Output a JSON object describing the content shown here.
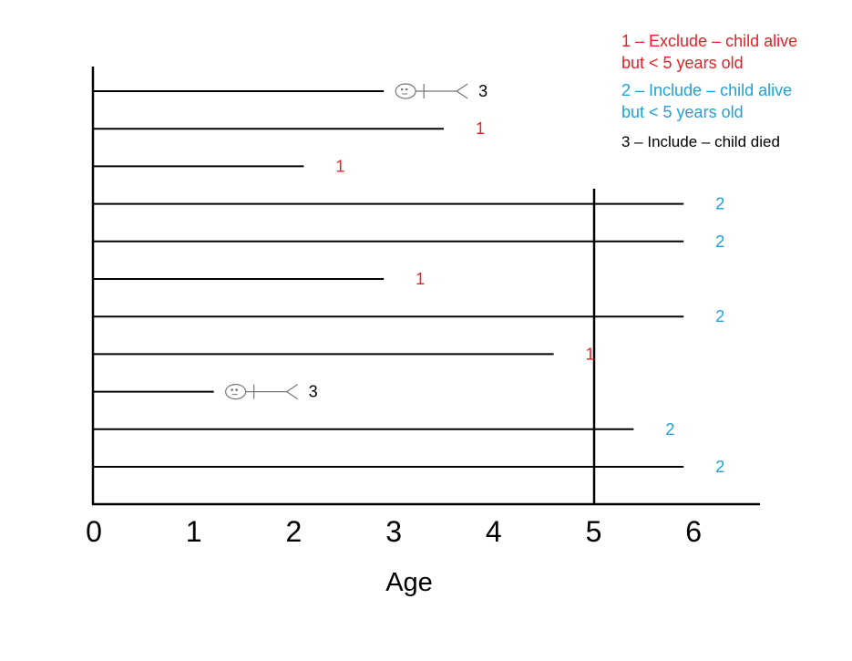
{
  "colors": {
    "exclude": "#ee1c24",
    "include_alive": "#1ea1db",
    "include_died": "#000000",
    "axis": "#000000",
    "figure": "#777777"
  },
  "legend": [
    {
      "lines": [
        "1 – Exclude – child alive",
        "but < 5 years old"
      ],
      "color_key": "exclude"
    },
    {
      "lines": [
        "2 – Include – child alive",
        "but < 5 years old"
      ],
      "color_key": "include_alive"
    },
    {
      "lines": [
        "3 – Include – child died"
      ],
      "color_key": "include_died"
    }
  ],
  "x_axis": {
    "label": "Age",
    "ticks": [
      "0",
      "1",
      "2",
      "3",
      "4",
      "5",
      "6"
    ],
    "cutoff": 5
  },
  "children": [
    {
      "end_age": 2.9,
      "category": "3",
      "color_key": "include_died",
      "died": true
    },
    {
      "end_age": 3.5,
      "category": "1",
      "color_key": "exclude",
      "died": false
    },
    {
      "end_age": 2.1,
      "category": "1",
      "color_key": "exclude",
      "died": false
    },
    {
      "end_age": 5.9,
      "category": "2",
      "color_key": "include_alive",
      "died": false
    },
    {
      "end_age": 5.9,
      "category": "2",
      "color_key": "include_alive",
      "died": false
    },
    {
      "end_age": 2.9,
      "category": "1",
      "color_key": "exclude",
      "died": false
    },
    {
      "end_age": 5.9,
      "category": "2",
      "color_key": "include_alive",
      "died": false
    },
    {
      "end_age": 4.6,
      "category": "1",
      "color_key": "exclude",
      "died": false
    },
    {
      "end_age": 1.2,
      "category": "3",
      "color_key": "include_died",
      "died": true
    },
    {
      "end_age": 5.4,
      "category": "2",
      "color_key": "include_alive",
      "died": false
    },
    {
      "end_age": 5.9,
      "category": "2",
      "color_key": "include_alive",
      "died": false
    }
  ]
}
